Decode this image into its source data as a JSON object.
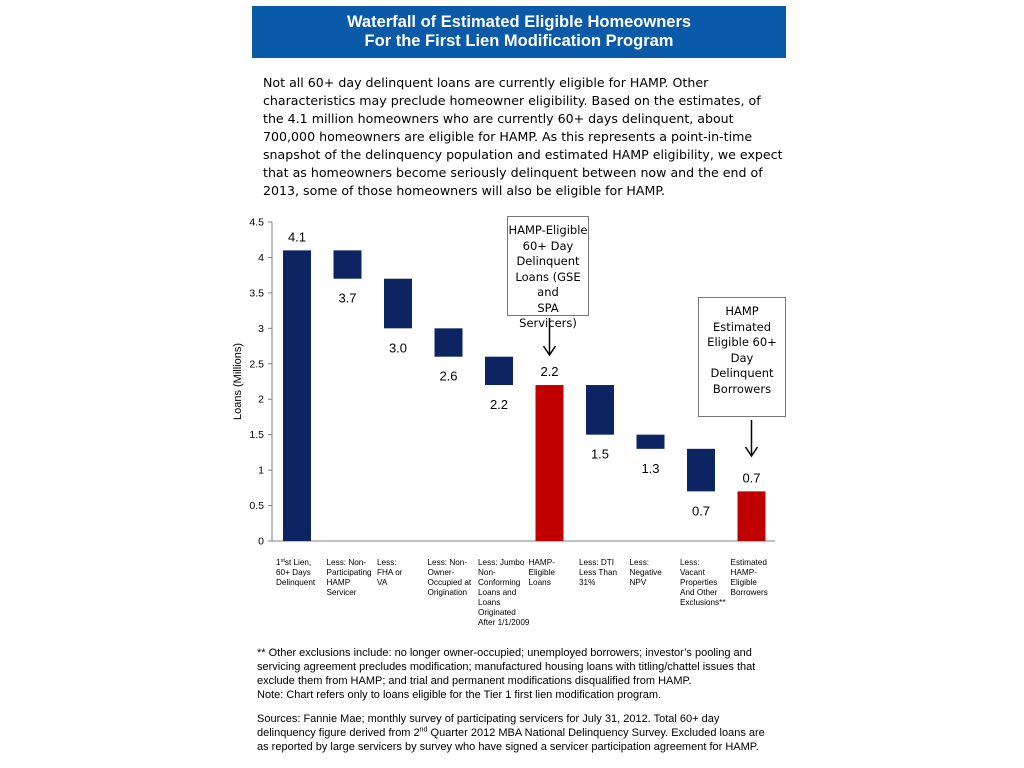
{
  "title": {
    "line1": "Waterfall of Estimated Eligible Homeowners",
    "line2": "For the First Lien Modification Program"
  },
  "intro_text": "Not all 60+ day delinquent loans are currently eligible for HAMP. Other characteristics may preclude homeowner eligibility. Based on the estimates, of the 4.1 million homeowners who are currently 60+ days delinquent, about 700,000 homeowners are eligible for HAMP. As this represents a point-in-time snapshot of the delinquency population and estimated HAMP eligibility, we expect that as homeowners become seriously delinquent between now and the end of 2013, some of those homeowners will also be eligible for HAMP.",
  "chart_data": {
    "type": "bar",
    "subtype": "waterfall",
    "title": "",
    "xlabel": "",
    "ylabel": "Loans (Millions)",
    "ylim": [
      0,
      4.5
    ],
    "yticks": [
      "0",
      "0.5",
      "1",
      "1.5",
      "2",
      "2.5",
      "3",
      "3.5",
      "4",
      "4.5"
    ],
    "grid": false,
    "legend": "none",
    "colors": {
      "total": "#c00000",
      "step": "#0d2462"
    },
    "bars": [
      {
        "category": "1st Lien, 60+ Days Delinquent",
        "bottom": 0,
        "top": 4.1,
        "label": "4.1",
        "color": "step",
        "label_pos": "above"
      },
      {
        "category": "Less: Non-Participating HAMP Servicer",
        "bottom": 3.7,
        "top": 4.1,
        "label": "3.7",
        "color": "step",
        "label_pos": "below"
      },
      {
        "category": "Less: FHA or VA",
        "bottom": 3.0,
        "top": 3.7,
        "label": "3.0",
        "color": "step",
        "label_pos": "below"
      },
      {
        "category": "Less: Non-Owner-Occupied at Origination",
        "bottom": 2.6,
        "top": 3.0,
        "label": "2.6",
        "color": "step",
        "label_pos": "below"
      },
      {
        "category": "Less: Jumbo Non-Conforming Loans and Loans Originated After 1/1/2009",
        "bottom": 2.2,
        "top": 2.6,
        "label": "2.2",
        "color": "step",
        "label_pos": "below"
      },
      {
        "category": "HAMP-Eligible Loans",
        "bottom": 0,
        "top": 2.2,
        "label": "2.2",
        "color": "total",
        "label_pos": "above"
      },
      {
        "category": "Less: DTI Less Than 31%",
        "bottom": 1.5,
        "top": 2.2,
        "label": "1.5",
        "color": "step",
        "label_pos": "below"
      },
      {
        "category": "Less: Negative NPV",
        "bottom": 1.3,
        "top": 1.5,
        "label": "1.3",
        "color": "step",
        "label_pos": "below"
      },
      {
        "category": "Less: Vacant Properties And Other Exclusions**",
        "bottom": 0.7,
        "top": 1.3,
        "label": "0.7",
        "color": "step",
        "label_pos": "below"
      },
      {
        "category": "Estimated HAMP-Eligible Borrowers",
        "bottom": 0,
        "top": 0.7,
        "label": "0.7",
        "color": "total",
        "label_pos": "above"
      }
    ],
    "category_lines": [
      [
        "1st Lien,",
        "60+ Days",
        "Delinquent"
      ],
      [
        "Less: Non-",
        "Participating",
        "HAMP",
        "Servicer"
      ],
      [
        "Less:",
        "FHA or",
        "VA"
      ],
      [
        "Less: Non-",
        "Owner-",
        "Occupied at",
        "Origination"
      ],
      [
        "Less: Jumbo",
        "Non-",
        "Conforming",
        "Loans and",
        "Loans",
        "Originated",
        "After 1/1/2009"
      ],
      [
        "HAMP-",
        "Eligible",
        "Loans"
      ],
      [
        "Less: DTI",
        "Less Than",
        " 31%"
      ],
      [
        "Less:",
        "Negative",
        "NPV"
      ],
      [
        "Less:",
        "Vacant",
        "Properties",
        "And Other",
        "Exclusions**"
      ],
      [
        "Estimated",
        "HAMP-",
        "Eligible",
        "Borrowers"
      ]
    ],
    "first_category_superscript": "st",
    "annotations": [
      {
        "target_bar": 5,
        "lines": [
          "HAMP-Eligible",
          "60+ Day",
          "Delinquent",
          "Loans (GSE and",
          "SPA Servicers)"
        ]
      },
      {
        "target_bar": 9,
        "lines": [
          "HAMP",
          "Estimated",
          "Eligible 60+",
          "Day",
          "Delinquent",
          "Borrowers"
        ]
      }
    ]
  },
  "footnote": {
    "lines": [
      "** Other exclusions include: no longer owner-occupied; unemployed borrowers; investor’s pooling and",
      "servicing agreement precludes modification; manufactured housing loans with titling/chattel issues that",
      "exclude them from HAMP; and trial and permanent modifications disqualified from HAMP.",
      "Note: Chart refers only to loans eligible for the Tier 1 first lien modification program."
    ]
  },
  "sources": {
    "line1": "Sources: Fannie Mae; monthly survey of participating servicers for July 31, 2012. Total 60+ day",
    "line2_pre": "delinquency figure derived from 2",
    "line2_sup": "nd",
    "line2_post": " Quarter 2012 MBA National Delinquency Survey. Excluded loans are",
    "line3": "as reported by large servicers by survey who have signed a servicer participation agreement for HAMP."
  }
}
